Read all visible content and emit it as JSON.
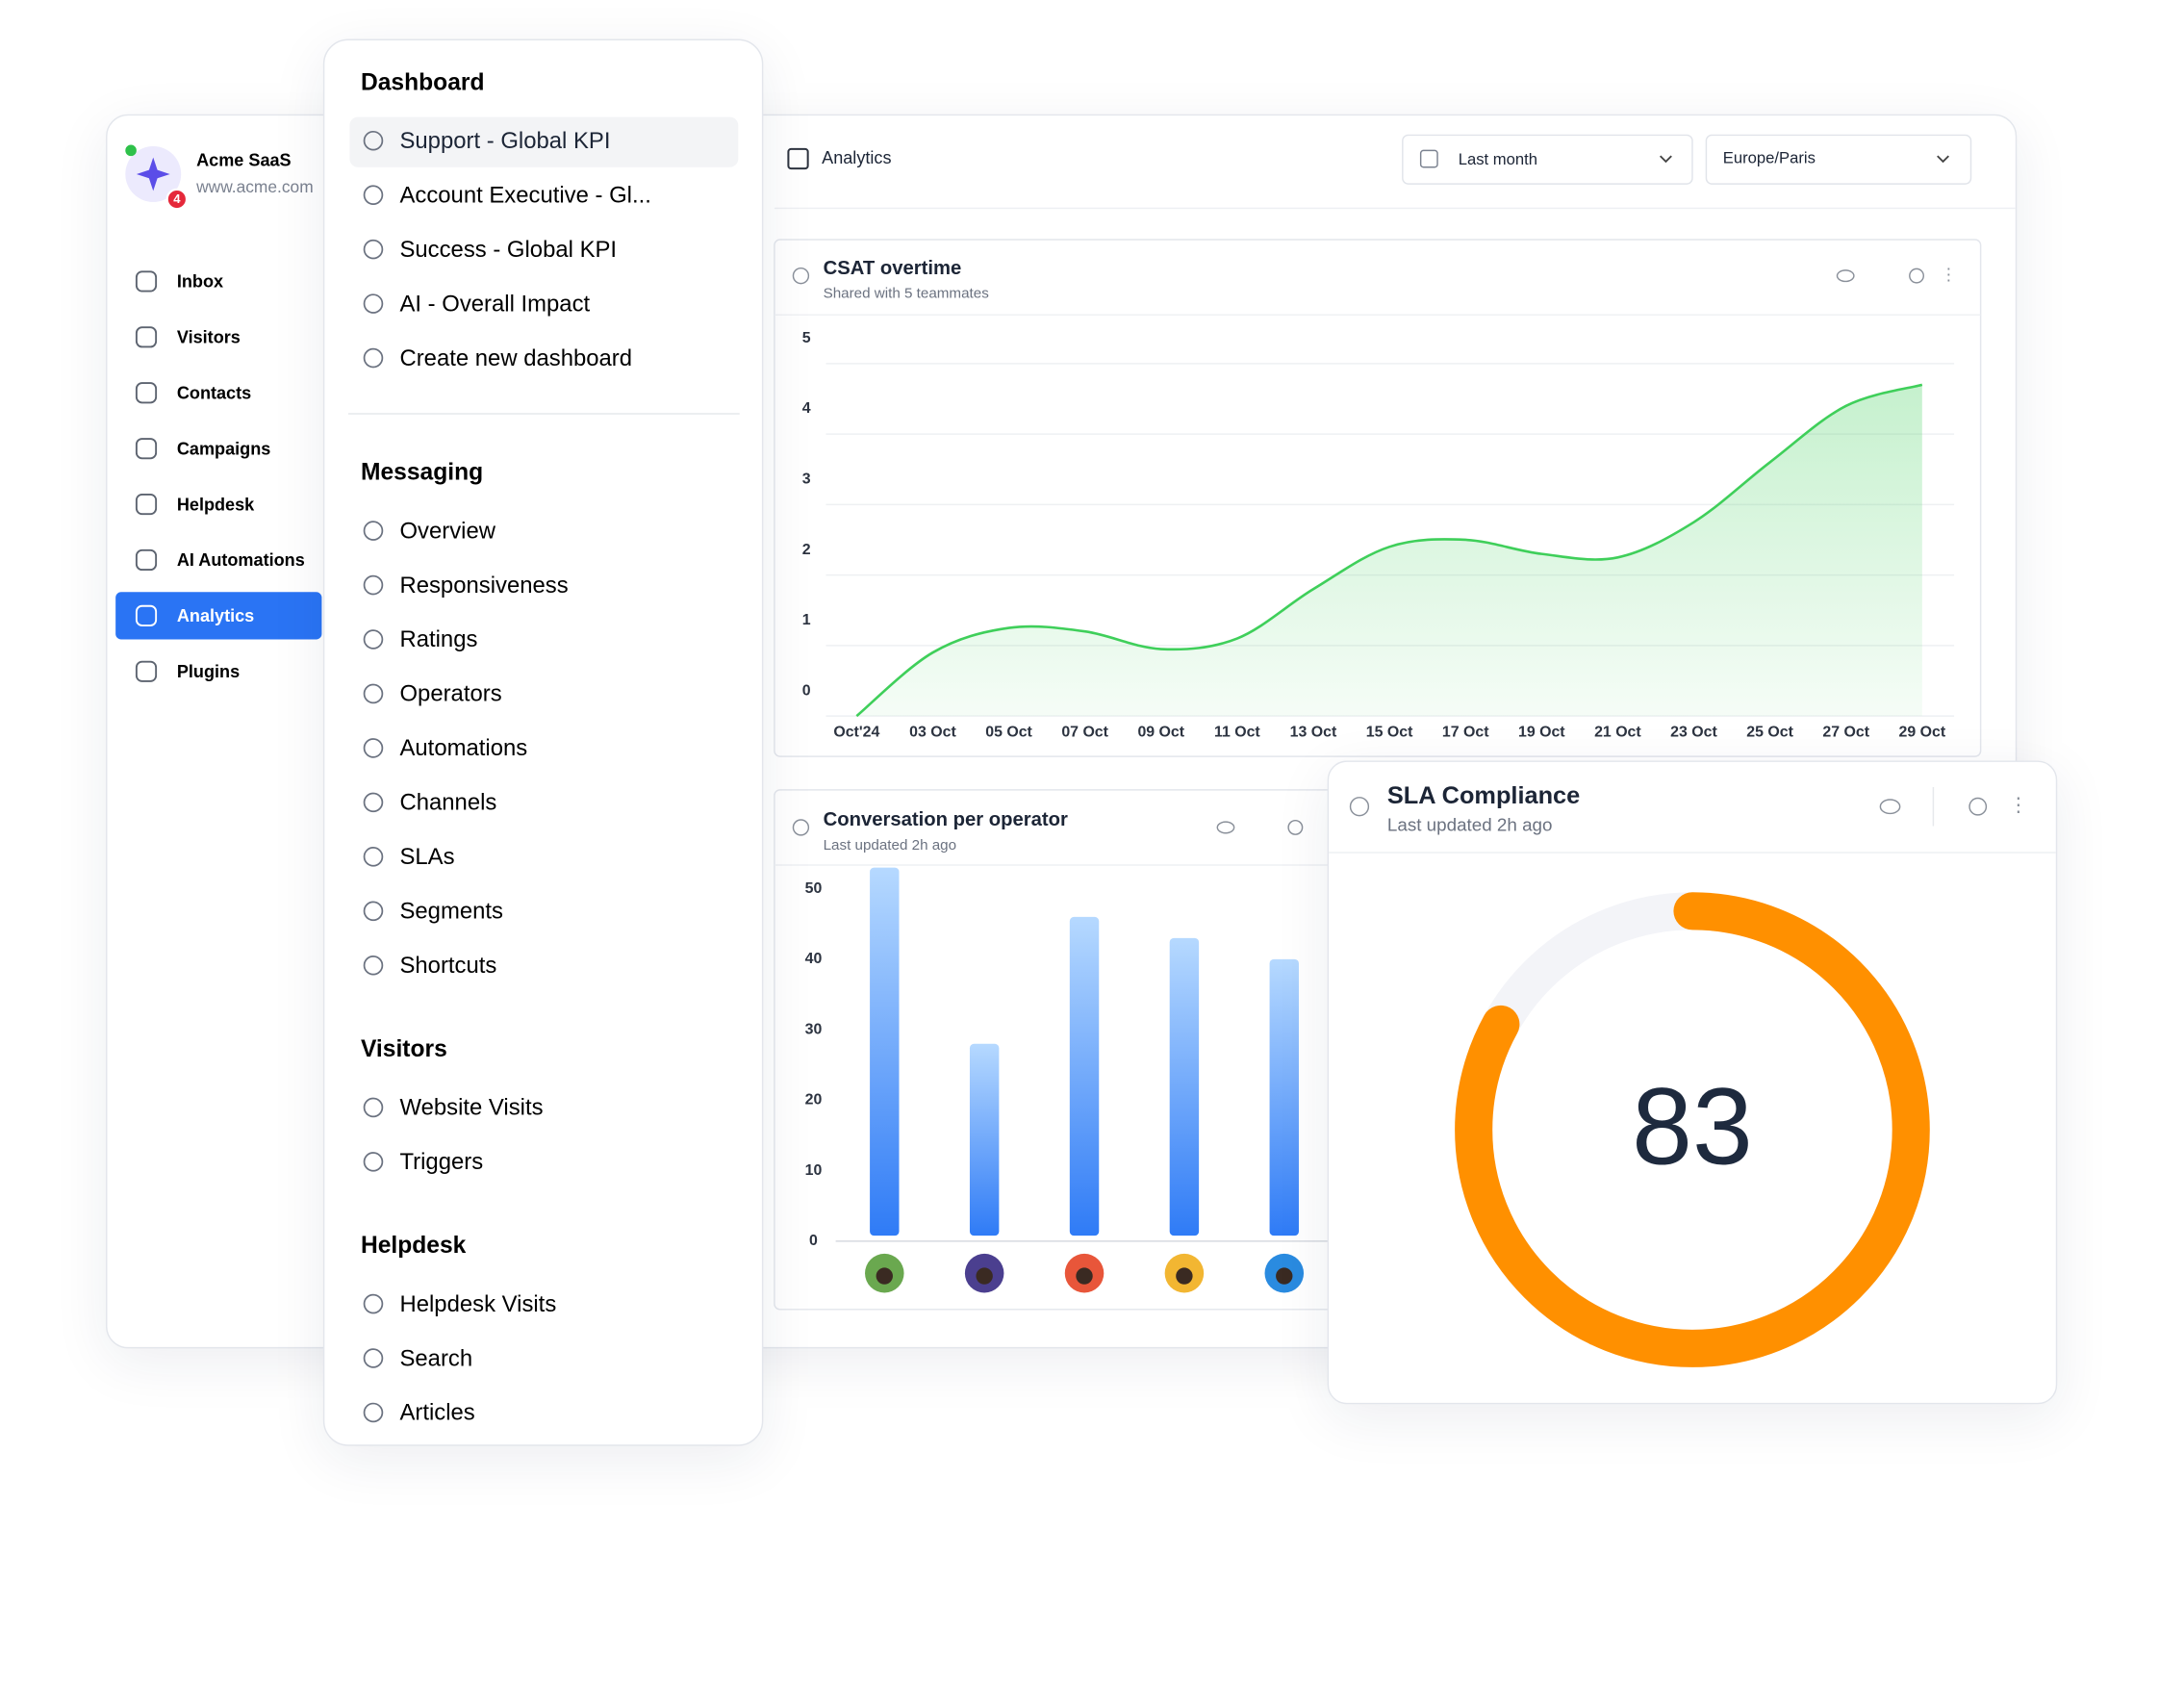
{
  "sidebar": {
    "name": "Acme SaaS",
    "url": "www.acme.com",
    "badge": 4,
    "items": [
      "Inbox",
      "Visitors",
      "Contacts",
      "Campaigns",
      "Helpdesk",
      "AI Automations",
      "Analytics",
      "Plugins"
    ]
  },
  "menu": {
    "sections": [
      {
        "title": "Dashboard",
        "items": [
          "Support - Global KPI",
          "Account Executive - Gl...",
          "Success - Global KPI",
          "AI - Overall Impact",
          "Create new dashboard"
        ]
      },
      {
        "title": "Messaging",
        "items": [
          "Overview",
          "Responsiveness",
          "Ratings",
          "Operators",
          "Automations",
          "Channels",
          "SLAs",
          "Segments",
          "Shortcuts"
        ]
      },
      {
        "title": "Visitors",
        "items": [
          "Website Visits",
          "Triggers"
        ]
      },
      {
        "title": "Helpdesk",
        "items": [
          "Helpdesk Visits",
          "Search",
          "Articles"
        ]
      }
    ]
  },
  "header": {
    "title": "Analytics",
    "period": "Last month",
    "timezone": "Europe/Paris"
  },
  "chart_data": [
    {
      "type": "line",
      "title": "CSAT overtime",
      "subtitle": "Shared with 5 teammates",
      "color": "#3fcf5a",
      "categories": [
        "Oct'24",
        "03 Oct",
        "05 Oct",
        "07 Oct",
        "09 Oct",
        "11 Oct",
        "13 Oct",
        "15 Oct",
        "17 Oct",
        "19 Oct",
        "21 Oct",
        "23 Oct",
        "25 Oct",
        "27 Oct",
        "29 Oct"
      ],
      "values": [
        0,
        0.9,
        1.25,
        1.2,
        0.95,
        1.1,
        1.8,
        2.4,
        2.5,
        2.3,
        2.25,
        2.75,
        3.6,
        4.4,
        4.7
      ],
      "ylim": [
        0,
        5
      ],
      "yticks": [
        0,
        1,
        2,
        3,
        4,
        5
      ],
      "grid": true
    },
    {
      "type": "bar",
      "title": "Conversation per operator",
      "subtitle": "Last updated 2h ago",
      "color": "#2f7bf6",
      "categories": [
        null,
        null,
        null,
        null,
        null
      ],
      "values": [
        53,
        28,
        46,
        43,
        40
      ],
      "ylim": [
        0,
        50
      ],
      "yticks": [
        0,
        10,
        20,
        30,
        40,
        50
      ],
      "grid": false
    },
    {
      "type": "gauge",
      "title": "SLA Compliance",
      "subtitle": "Last updated 2h ago",
      "color": "#ff9000",
      "value": 83,
      "ylim": [
        0,
        100
      ]
    }
  ]
}
